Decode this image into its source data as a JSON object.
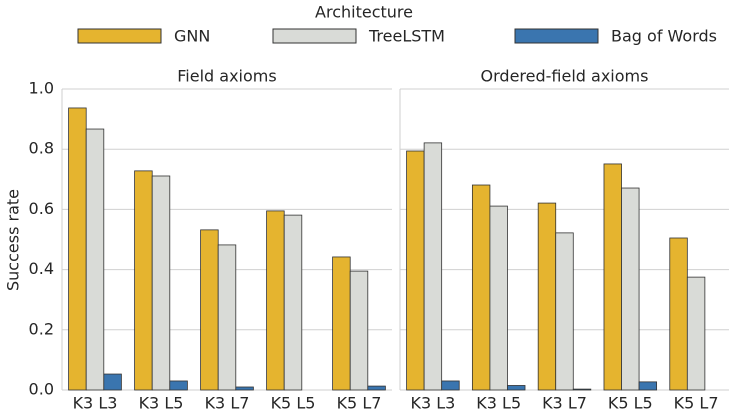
{
  "chart_data": [
    {
      "type": "bar",
      "title": "Field axioms",
      "ylabel": "Success rate",
      "legend_title": "Architecture",
      "categories": [
        "K3 L3",
        "K3 L5",
        "K3 L7",
        "K5 L5",
        "K5 L7"
      ],
      "series": [
        {
          "name": "GNN",
          "color": "#e5b42f",
          "values": [
            0.937,
            0.728,
            0.532,
            0.595,
            0.442
          ]
        },
        {
          "name": "TreeLSTM",
          "color": "#d9dbd7",
          "values": [
            0.867,
            0.711,
            0.482,
            0.581,
            0.395
          ]
        },
        {
          "name": "Bag of Words",
          "color": "#3a75af",
          "values": [
            0.053,
            0.03,
            0.01,
            0,
            0.013
          ]
        }
      ],
      "ylim": [
        0,
        1
      ],
      "yticks": [
        {
          "value": 0,
          "label": "0.0"
        },
        0.2,
        0.4,
        0.6,
        0.8,
        {
          "value": 1,
          "label": "1.0"
        }
      ],
      "grid": true,
      "legend": "top"
    },
    {
      "type": "bar",
      "title": "Ordered-field axioms",
      "categories": [
        "K3 L3",
        "K3 L5",
        "K3 L7",
        "K5 L5",
        "K5 L7"
      ],
      "series": [
        {
          "name": "GNN",
          "color": "#e5b42f",
          "values": [
            0.794,
            0.681,
            0.621,
            0.751,
            0.505
          ]
        },
        {
          "name": "TreeLSTM",
          "color": "#d9dbd7",
          "values": [
            0.821,
            0.611,
            0.522,
            0.671,
            0.375
          ]
        },
        {
          "name": "Bag of Words",
          "color": "#3a75af",
          "values": [
            0.03,
            0.015,
            0.003,
            0.027,
            0
          ]
        }
      ],
      "grid": true
    }
  ]
}
